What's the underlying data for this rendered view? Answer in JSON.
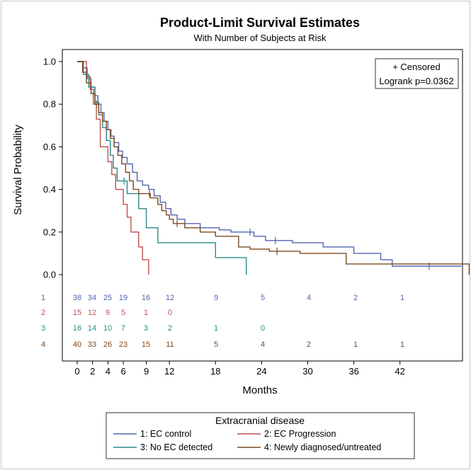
{
  "chart_data": {
    "type": "line",
    "step": true,
    "title": "Product-Limit Survival Estimates",
    "subtitle": "With Number of Subjects at Risk",
    "xlabel": "Months",
    "ylabel": "Survival Probability",
    "xlim": [
      -1,
      51
    ],
    "ylim": [
      0,
      1.0
    ],
    "x_ticks": [
      0,
      2,
      4,
      6,
      9,
      12,
      18,
      24,
      30,
      36,
      42
    ],
    "y_ticks": [
      "0.0",
      "0.2",
      "0.4",
      "0.6",
      "0.8",
      "1.0"
    ],
    "inset": {
      "censored_label": "+ Censored",
      "logrank_label": "Logrank p=0.0362"
    },
    "legend_title": "Extracranial disease",
    "series": [
      {
        "name": "1: EC control",
        "color": "#5566b0",
        "risk_label": "1",
        "steps": [
          [
            0,
            1.0
          ],
          [
            0.8,
            0.97
          ],
          [
            1.3,
            0.92
          ],
          [
            1.8,
            0.88
          ],
          [
            2.3,
            0.84
          ],
          [
            2.7,
            0.8
          ],
          [
            3.1,
            0.76
          ],
          [
            3.5,
            0.72
          ],
          [
            4.0,
            0.68
          ],
          [
            4.4,
            0.65
          ],
          [
            4.8,
            0.62
          ],
          [
            5.4,
            0.58
          ],
          [
            5.9,
            0.55
          ],
          [
            6.5,
            0.52
          ],
          [
            7.2,
            0.48
          ],
          [
            7.8,
            0.44
          ],
          [
            8.5,
            0.42
          ],
          [
            9.3,
            0.4
          ],
          [
            10.0,
            0.37
          ],
          [
            10.8,
            0.34
          ],
          [
            11.5,
            0.31
          ],
          [
            12.2,
            0.28
          ],
          [
            13.0,
            0.26
          ],
          [
            14.0,
            0.24
          ],
          [
            16.0,
            0.22
          ],
          [
            18.5,
            0.21
          ],
          [
            20.0,
            0.2
          ],
          [
            23.0,
            0.18
          ],
          [
            24.5,
            0.16
          ],
          [
            28.0,
            0.15
          ],
          [
            32.0,
            0.13
          ],
          [
            36.0,
            0.1
          ],
          [
            39.5,
            0.07
          ],
          [
            41.0,
            0.04
          ],
          [
            50.0,
            0.04
          ]
        ],
        "censor_times": [
          22.5,
          25.8,
          45.8
        ],
        "at_risk": [
          38,
          34,
          25,
          19,
          16,
          12,
          9,
          5,
          4,
          2,
          1
        ]
      },
      {
        "name": "2: EC Progression",
        "color": "#c0504d",
        "risk_label": "2",
        "steps": [
          [
            0,
            1.0
          ],
          [
            1.2,
            0.93
          ],
          [
            1.7,
            0.87
          ],
          [
            2.1,
            0.8
          ],
          [
            2.5,
            0.73
          ],
          [
            3.0,
            0.6
          ],
          [
            3.5,
            0.6
          ],
          [
            4.0,
            0.53
          ],
          [
            4.5,
            0.47
          ],
          [
            5.0,
            0.4
          ],
          [
            6.0,
            0.33
          ],
          [
            6.5,
            0.27
          ],
          [
            7.0,
            0.2
          ],
          [
            8.0,
            0.13
          ],
          [
            8.5,
            0.07
          ],
          [
            9.3,
            0.0
          ]
        ],
        "censor_times": [],
        "at_risk": [
          15,
          12,
          9,
          5,
          1,
          0
        ]
      },
      {
        "name": "3: No EC detected",
        "color": "#2a8a8a",
        "risk_label": "3",
        "steps": [
          [
            0,
            1.0
          ],
          [
            0.8,
            0.94
          ],
          [
            1.5,
            0.88
          ],
          [
            2.3,
            0.81
          ],
          [
            2.8,
            0.75
          ],
          [
            3.3,
            0.69
          ],
          [
            3.8,
            0.63
          ],
          [
            4.3,
            0.56
          ],
          [
            4.7,
            0.5
          ],
          [
            5.2,
            0.44
          ],
          [
            6.5,
            0.38
          ],
          [
            8.0,
            0.31
          ],
          [
            9.0,
            0.22
          ],
          [
            10.5,
            0.15
          ],
          [
            18.0,
            0.08
          ],
          [
            22.0,
            0.0
          ]
        ],
        "censor_times": [
          6.1
        ],
        "at_risk": [
          16,
          14,
          10,
          7,
          3,
          2,
          1,
          0
        ]
      },
      {
        "name": "4: Newly diagnosed/untreated",
        "color": "#7a4a1e",
        "risk_label": "4",
        "steps": [
          [
            0,
            1.0
          ],
          [
            0.7,
            0.95
          ],
          [
            1.2,
            0.9
          ],
          [
            1.8,
            0.85
          ],
          [
            2.3,
            0.8
          ],
          [
            2.8,
            0.76
          ],
          [
            3.3,
            0.72
          ],
          [
            3.8,
            0.68
          ],
          [
            4.3,
            0.64
          ],
          [
            4.8,
            0.6
          ],
          [
            5.3,
            0.56
          ],
          [
            5.8,
            0.52
          ],
          [
            6.3,
            0.48
          ],
          [
            6.8,
            0.44
          ],
          [
            7.3,
            0.4
          ],
          [
            8.0,
            0.38
          ],
          [
            9.5,
            0.36
          ],
          [
            10.5,
            0.33
          ],
          [
            11.0,
            0.3
          ],
          [
            11.6,
            0.28
          ],
          [
            12.0,
            0.26
          ],
          [
            12.5,
            0.24
          ],
          [
            14.0,
            0.22
          ],
          [
            16.0,
            0.2
          ],
          [
            18.0,
            0.18
          ],
          [
            21.0,
            0.13
          ],
          [
            22.5,
            0.12
          ],
          [
            25.0,
            0.11
          ],
          [
            29.0,
            0.1
          ],
          [
            35.0,
            0.05
          ],
          [
            50.0,
            0.05
          ],
          [
            51.0,
            0.0
          ]
        ],
        "censor_times": [
          2.5,
          9.4,
          13.0,
          26.0
        ],
        "at_risk": [
          40,
          33,
          26,
          23,
          15,
          11,
          5,
          4,
          2,
          1,
          1
        ]
      }
    ]
  }
}
